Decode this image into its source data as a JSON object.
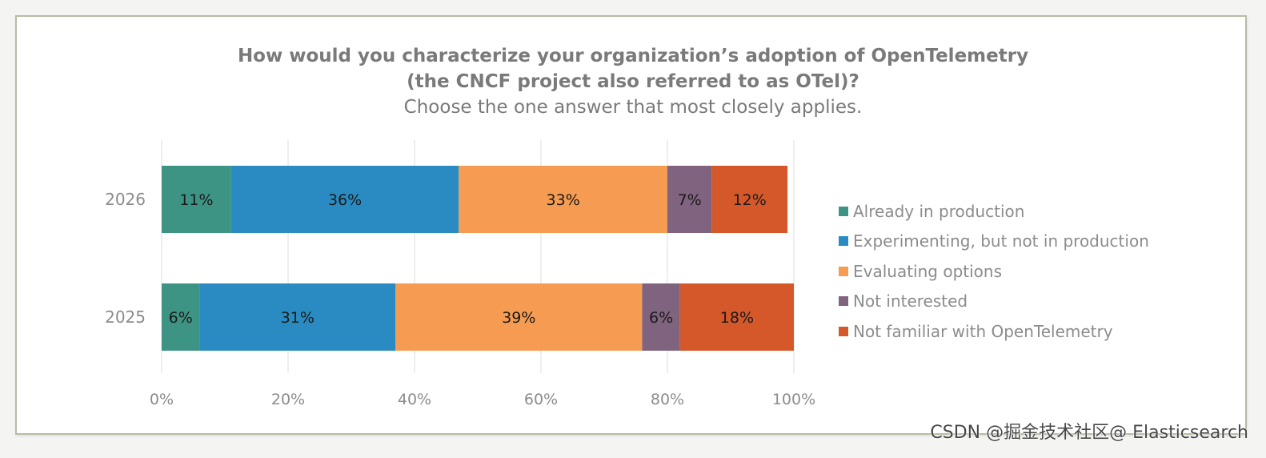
{
  "chart_data": {
    "type": "bar",
    "orientation": "horizontal",
    "stacked": true,
    "title_lines": [
      "How would you characterize your organization’s adoption of OpenTelemetry",
      "(the CNCF project also referred to as OTel)?"
    ],
    "subtitle": "Choose the one answer that most closely applies.",
    "categories": [
      "2026",
      "2025"
    ],
    "series": [
      {
        "name": "Already in production",
        "values": [
          11,
          6
        ],
        "color": "#3e9484"
      },
      {
        "name": "Experimenting, but not in production",
        "values": [
          36,
          31
        ],
        "color": "#2a8bc2"
      },
      {
        "name": "Evaluating options",
        "values": [
          33,
          39
        ],
        "color": "#f59c52"
      },
      {
        "name": "Not interested",
        "values": [
          7,
          6
        ],
        "color": "#80637f"
      },
      {
        "name": "Not familiar with OpenTelemetry",
        "values": [
          12,
          18
        ],
        "color": "#d4582a"
      }
    ],
    "x_ticks": [
      "0%",
      "20%",
      "40%",
      "60%",
      "80%",
      "100%"
    ],
    "xlim": [
      0,
      100
    ],
    "grid": true,
    "legend_position": "right"
  },
  "watermark": "CSDN @掘金技术社区@ Elasticsearch"
}
